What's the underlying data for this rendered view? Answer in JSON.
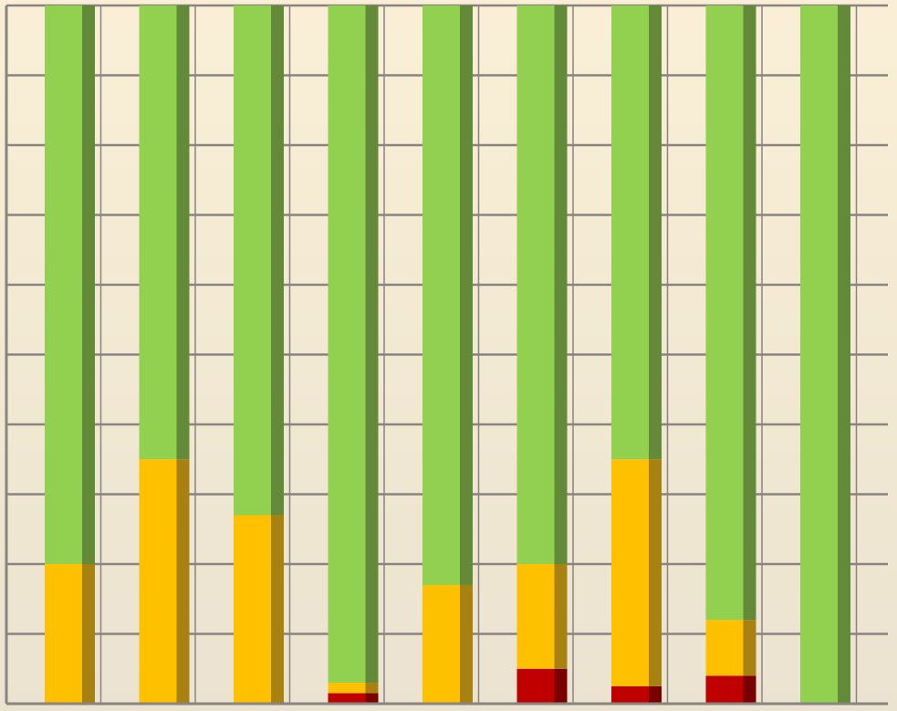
{
  "chart_data": {
    "type": "bar",
    "stacked": true,
    "percent_stacked": true,
    "categories": [
      "",
      "",
      "",
      "",
      "",
      "",
      "",
      "",
      ""
    ],
    "series": [
      {
        "values": [
          0,
          0,
          0,
          1.5,
          0,
          5,
          2.5,
          4,
          0
        ],
        "color": "#c00000",
        "shade": "#7a0000"
      },
      {
        "values": [
          20,
          35,
          27,
          1.5,
          17,
          15,
          32.5,
          8,
          0
        ],
        "color": "#ffc000",
        "shade": "#a88210"
      },
      {
        "values": [
          80,
          65,
          73,
          97,
          83,
          80,
          65,
          88,
          100
        ],
        "color": "#92d050",
        "shade": "#628a38"
      }
    ],
    "ylim": [
      0,
      100
    ],
    "grid": true,
    "legend": "none",
    "background_top": "#faefd6",
    "background_bottom": "#ebe3d0",
    "gridline_color": "#8a8480"
  }
}
